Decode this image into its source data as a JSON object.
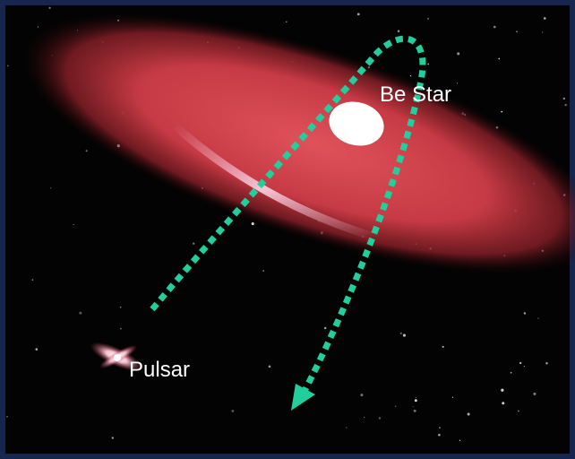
{
  "labels": {
    "be_star": "Be Star",
    "pulsar": "Pulsar"
  }
}
